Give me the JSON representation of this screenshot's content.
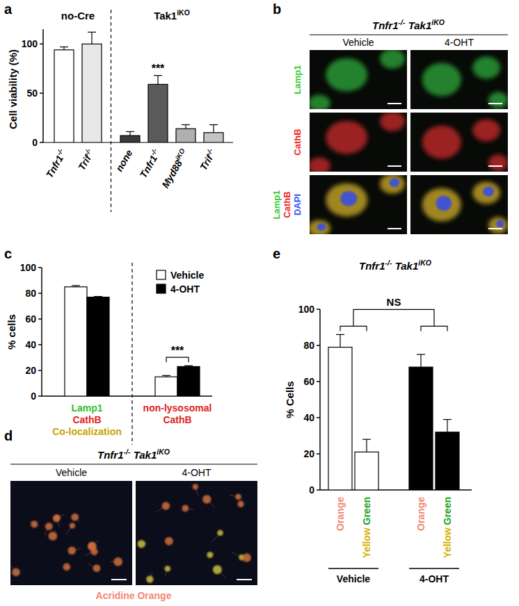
{
  "panel_labels": [
    "a",
    "b",
    "c",
    "d",
    "e"
  ],
  "chart_data": [
    {
      "type": "bar",
      "y_label": "Cell viability (%)",
      "categories": [
        "Tnfr1-/-",
        "Trif-/-",
        "none",
        "Tnfr1-/-",
        "Myd88iKO",
        "Trif-/-"
      ],
      "values": [
        94,
        100,
        7,
        59,
        14,
        10
      ],
      "errors": [
        3,
        12,
        4,
        9,
        4,
        8
      ],
      "colors": [
        "#ffffff",
        "#e8e8e8",
        "#3a3a3a",
        "#5a5a5a",
        "#b0b0b0",
        "#c4c4c4"
      ],
      "ylim": [
        0,
        115
      ],
      "yticks": [
        0,
        50,
        100
      ],
      "groups": [
        {
          "label": "no-Cre",
          "from": 0,
          "to": 1
        },
        {
          "label": "Tak1iKO",
          "from": 2,
          "to": 5
        }
      ],
      "annotations": [
        {
          "text": "***",
          "from": 3,
          "to": 3
        }
      ]
    },
    {
      "type": "bar",
      "y_label": "% cells",
      "categories": [
        "Lamp1 CathB Co-localization",
        "non-lysosomal CathB"
      ],
      "series": [
        {
          "name": "Vehicle",
          "color": "#ffffff",
          "values": [
            85,
            15
          ],
          "errors": [
            1,
            1
          ]
        },
        {
          "name": "4-OHT",
          "color": "#000000",
          "values": [
            77,
            23
          ],
          "errors": [
            0.5,
            0.7
          ]
        }
      ],
      "ylim": [
        0,
        100
      ],
      "yticks": [
        0,
        20,
        40,
        60,
        80,
        100
      ],
      "legend": "upper right",
      "annotations": [
        {
          "text": "***",
          "from": 1,
          "to": 1
        }
      ]
    },
    {
      "type": "bar",
      "title": "Tnfr1-/- Tak1iKO",
      "y_label": "% Cells",
      "categories": [
        "Orange",
        "Yellow Green",
        "Orange",
        "Yellow Green"
      ],
      "values": [
        79,
        21,
        68,
        32
      ],
      "errors": [
        7,
        7,
        7,
        7
      ],
      "colors": [
        "#ffffff",
        "#ffffff",
        "#000000",
        "#000000"
      ],
      "ylim": [
        0,
        100
      ],
      "yticks": [
        0,
        20,
        40,
        60,
        80,
        100
      ],
      "groups": [
        {
          "label": "Vehicle",
          "from": 0,
          "to": 1
        },
        {
          "label": "4-OHT",
          "from": 2,
          "to": 3
        }
      ],
      "annotations": [
        {
          "text": "NS",
          "from": 0,
          "to": 3
        }
      ]
    }
  ],
  "images": [
    {
      "title": "Tnfr1-/- Tak1iKO",
      "columns": [
        "Vehicle",
        "4-OHT"
      ],
      "rows": [
        [
          "Lamp1"
        ],
        [
          "CathB"
        ],
        [
          "Lamp1",
          "CathB",
          "DAPI"
        ]
      ]
    },
    {
      "title": "Tnfr1-/- Tak1iKO",
      "columns": [
        "Vehicle",
        "4-OHT"
      ],
      "caption": "Acridine Orange"
    }
  ]
}
